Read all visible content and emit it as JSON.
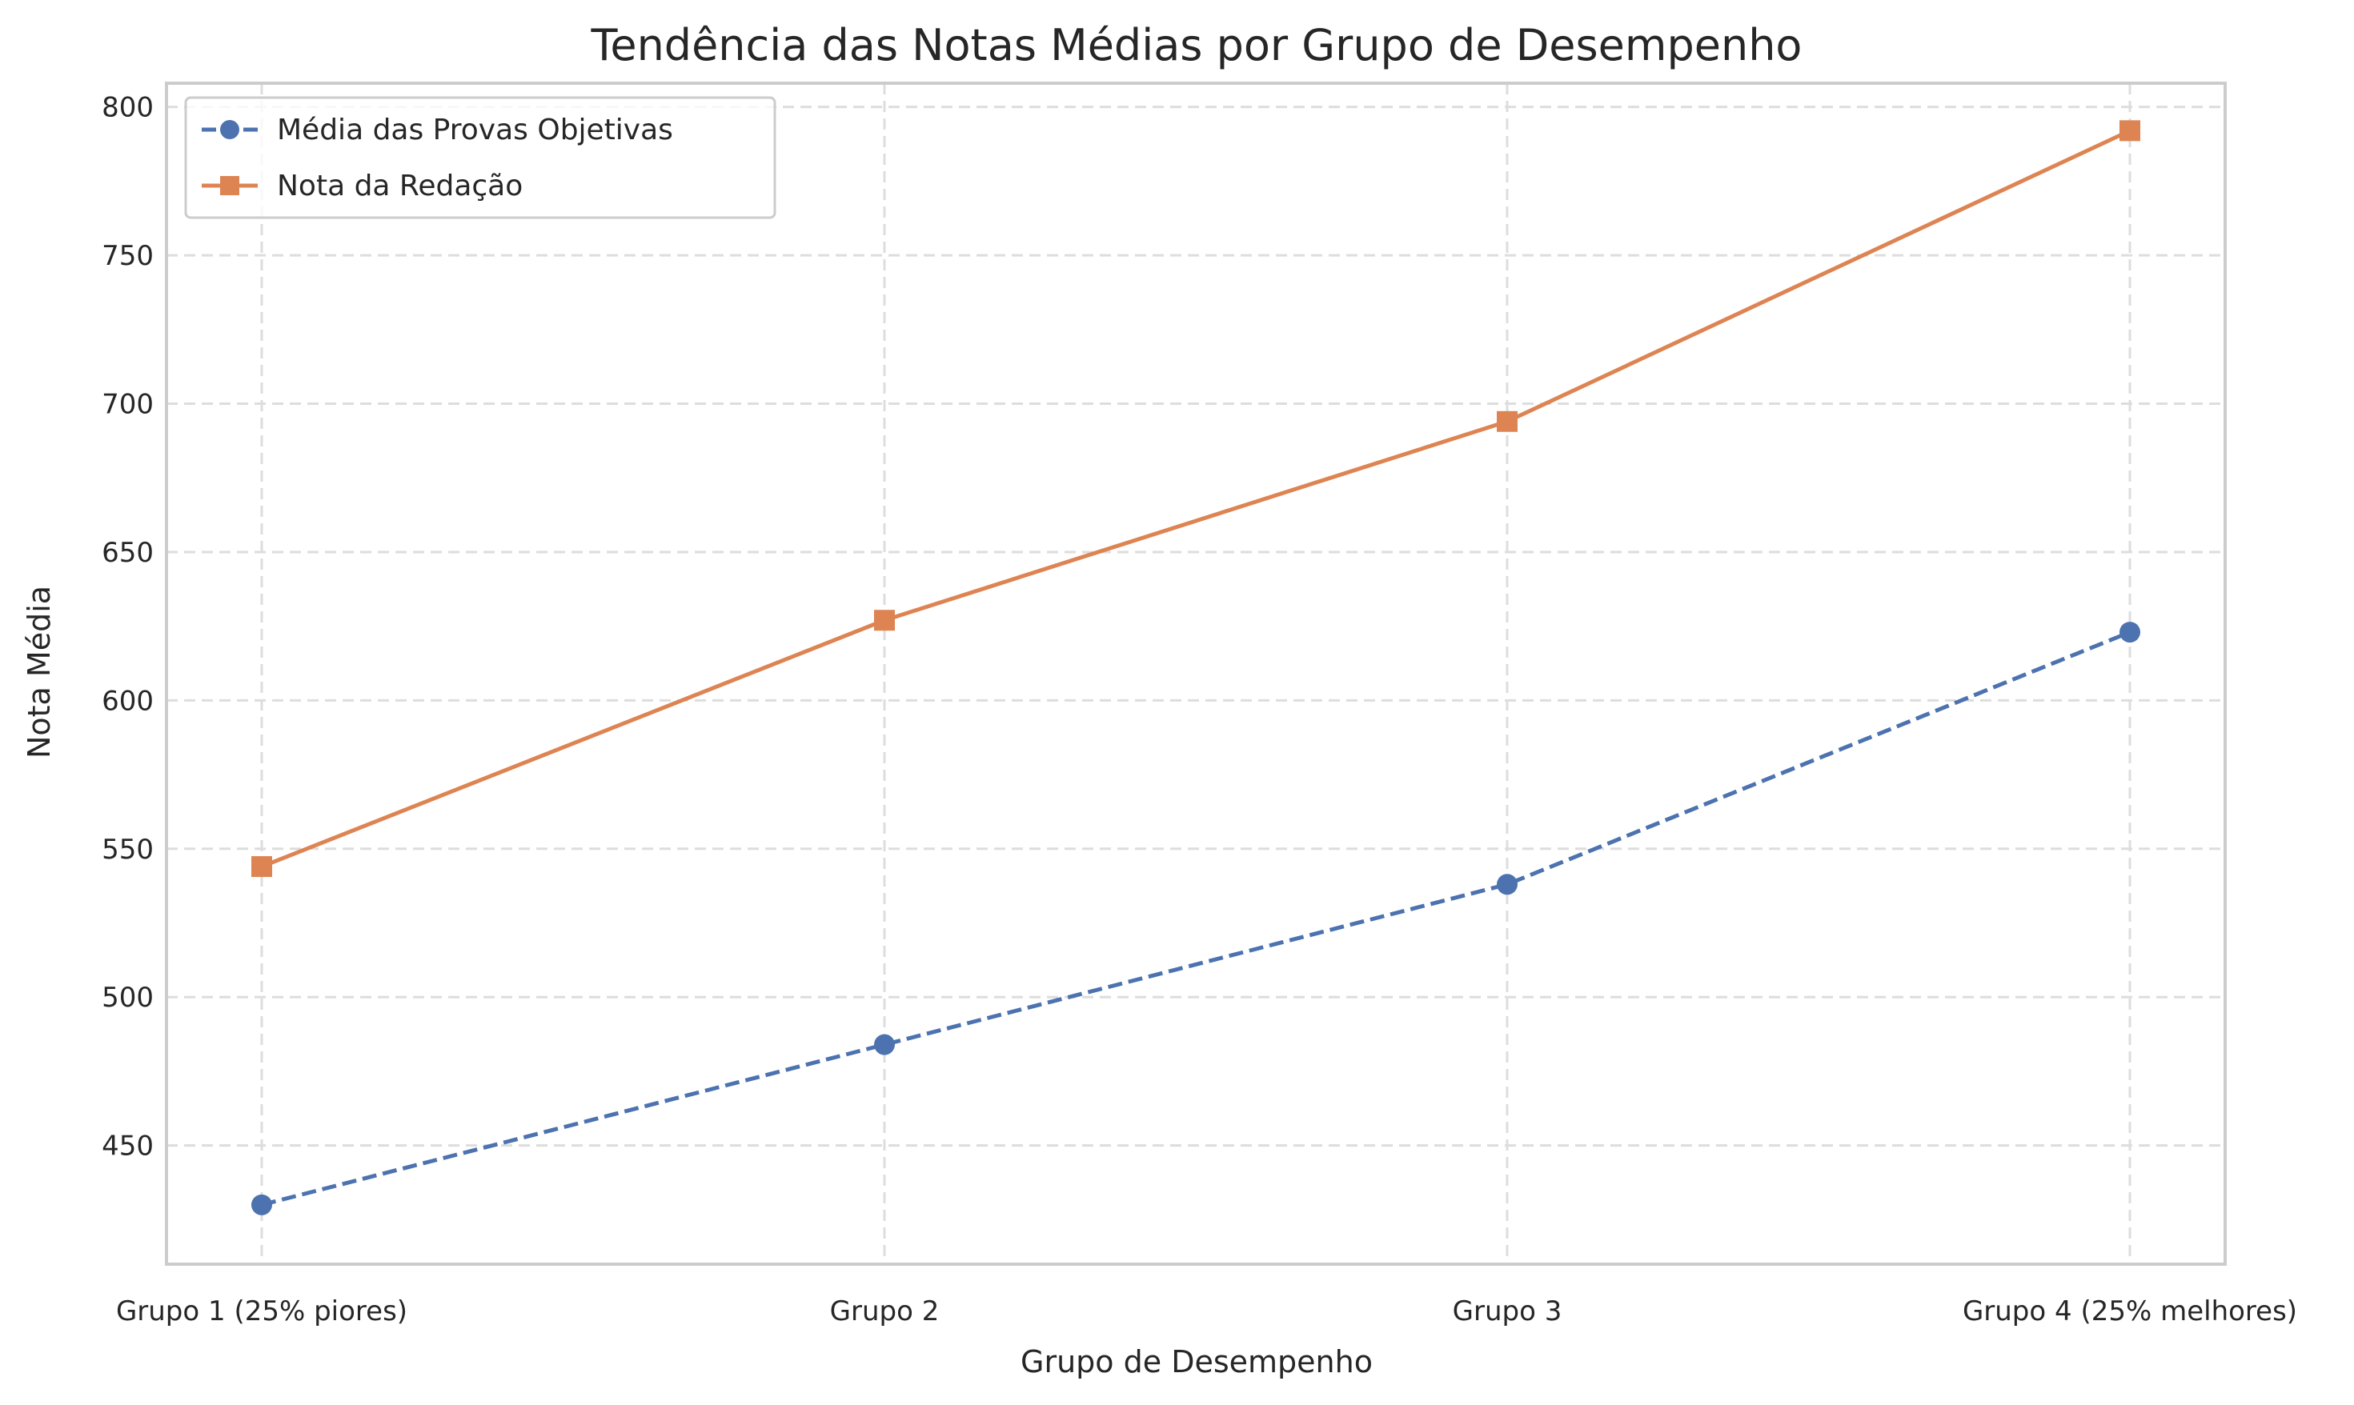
{
  "chart_data": {
    "type": "line",
    "title": "Tendência das Notas Médias por Grupo de Desempenho",
    "xlabel": "Grupo de Desempenho",
    "ylabel": "Nota Média",
    "categories": [
      "Grupo 1 (25% piores)",
      "Grupo 2",
      "Grupo 3",
      "Grupo 4 (25% melhores)"
    ],
    "series": [
      {
        "name": "Média das Provas Objetivas",
        "values": [
          430,
          484,
          538,
          623
        ],
        "color": "#4c72b0",
        "line_style": "dashed",
        "marker": "circle"
      },
      {
        "name": "Nota da Redação",
        "values": [
          544,
          627,
          694,
          792
        ],
        "color": "#dd8452",
        "line_style": "solid",
        "marker": "square"
      }
    ],
    "ylim": [
      410,
      808
    ],
    "yticks": [
      450,
      500,
      550,
      600,
      650,
      700,
      750,
      800
    ],
    "grid": true,
    "legend_position": "top-left"
  }
}
